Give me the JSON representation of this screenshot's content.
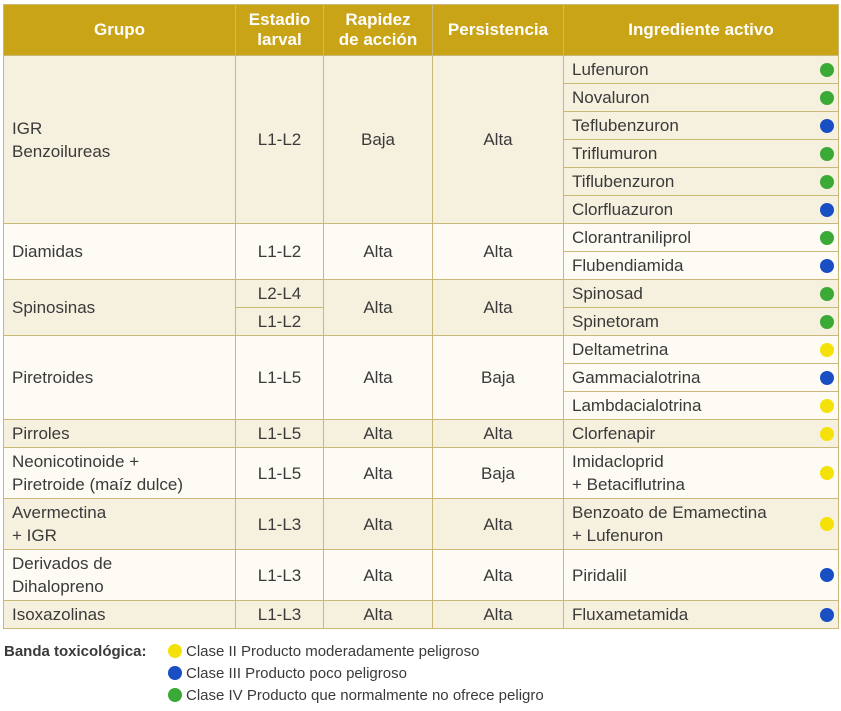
{
  "table": {
    "headers": [
      [
        "Grupo"
      ],
      [
        "Estadio",
        "larval"
      ],
      [
        "Rapidez",
        "de acción"
      ],
      [
        "Persistencia"
      ],
      [
        "Ingrediente activo"
      ]
    ],
    "groups": [
      {
        "group": [
          "IGR",
          "Benzoilureas"
        ],
        "stages": [
          "L1-L2"
        ],
        "speed": "Baja",
        "persistence": "Alta",
        "ingredients": [
          {
            "name": [
              "Lufenuron"
            ],
            "color": "#3aa935"
          },
          {
            "name": [
              "Novaluron"
            ],
            "color": "#3aa935"
          },
          {
            "name": [
              "Teflubenzuron"
            ],
            "color": "#1a4fc4"
          },
          {
            "name": [
              "Triflumuron"
            ],
            "color": "#3aa935"
          },
          {
            "name": [
              "Tiflubenzuron"
            ],
            "color": "#3aa935"
          },
          {
            "name": [
              "Clorfluazuron"
            ],
            "color": "#1a4fc4"
          }
        ]
      },
      {
        "group": [
          "Diamidas"
        ],
        "stages": [
          "L1-L2"
        ],
        "speed": "Alta",
        "persistence": "Alta",
        "ingredients": [
          {
            "name": [
              "Clorantraniliprol"
            ],
            "color": "#3aa935"
          },
          {
            "name": [
              "Flubendiamida"
            ],
            "color": "#1a4fc4"
          }
        ]
      },
      {
        "group": [
          "Spinosinas"
        ],
        "stages": [
          "L2-L4",
          "L1-L2"
        ],
        "speed": "Alta",
        "persistence": "Alta",
        "ingredients": [
          {
            "name": [
              "Spinosad"
            ],
            "color": "#3aa935"
          },
          {
            "name": [
              "Spinetoram"
            ],
            "color": "#3aa935"
          }
        ]
      },
      {
        "group": [
          "Piretroides"
        ],
        "stages": [
          "L1-L5"
        ],
        "speed": "Alta",
        "persistence": "Baja",
        "ingredients": [
          {
            "name": [
              "Deltametrina"
            ],
            "color": "#f5e10a"
          },
          {
            "name": [
              "Gammacialotrina"
            ],
            "color": "#1a4fc4"
          },
          {
            "name": [
              "Lambdacialotrina"
            ],
            "color": "#f5e10a"
          }
        ]
      },
      {
        "group": [
          "Pirroles"
        ],
        "stages": [
          "L1-L5"
        ],
        "speed": "Alta",
        "persistence": "Alta",
        "ingredients": [
          {
            "name": [
              "Clorfenapir"
            ],
            "color": "#f5e10a"
          }
        ]
      },
      {
        "group": [
          "Neonicotinoide +",
          "Piretroide (maíz dulce)"
        ],
        "stages": [
          "L1-L5"
        ],
        "speed": "Alta",
        "persistence": "Baja",
        "ingredients": [
          {
            "name": [
              "Imidacloprid",
              "+ Betaciflutrina"
            ],
            "color": "#f5e10a"
          }
        ]
      },
      {
        "group": [
          "Avermectina",
          "+ IGR"
        ],
        "stages": [
          "L1-L3"
        ],
        "speed": "Alta",
        "persistence": "Alta",
        "ingredients": [
          {
            "name": [
              "Benzoato de Emamectina",
              "+ Lufenuron"
            ],
            "color": "#f5e10a"
          }
        ]
      },
      {
        "group": [
          "Derivados de",
          "Dihalopreno"
        ],
        "stages": [
          "L1-L3"
        ],
        "speed": "Alta",
        "persistence": "Alta",
        "ingredients": [
          {
            "name": [
              "Piridalil"
            ],
            "color": "#1a4fc4"
          }
        ]
      },
      {
        "group": [
          "Isoxazolinas"
        ],
        "stages": [
          "L1-L3"
        ],
        "speed": "Alta",
        "persistence": "Alta",
        "ingredients": [
          {
            "name": [
              "Fluxametamida"
            ],
            "color": "#1a4fc4"
          }
        ]
      }
    ]
  },
  "legend": {
    "title": "Banda toxicológica:",
    "items": [
      {
        "label": "Clase II Producto moderadamente peligroso",
        "color": "#f5e10a"
      },
      {
        "label": "Clase III Producto poco peligroso",
        "color": "#1a4fc4"
      },
      {
        "label": "Clase IV Producto que normalmente no ofrece peligro",
        "color": "#3aa935"
      }
    ]
  }
}
